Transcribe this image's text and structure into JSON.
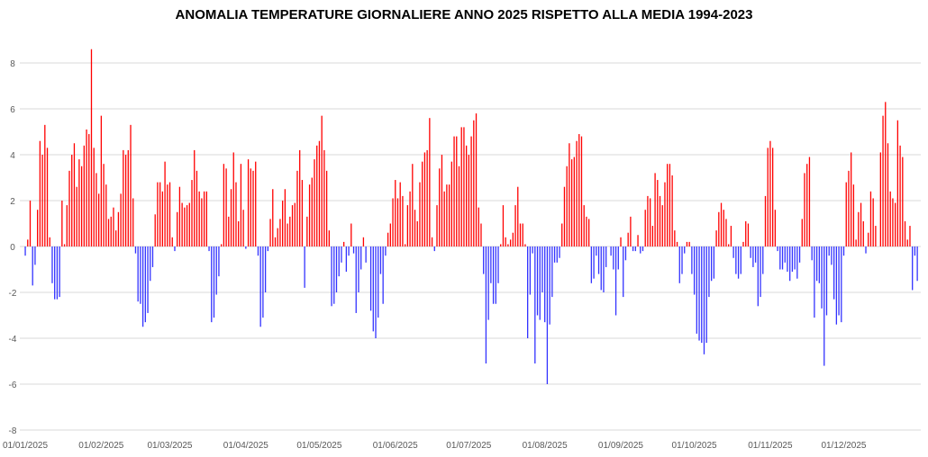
{
  "chart_data": {
    "type": "bar",
    "title": "ANOMALIA TEMPERATURE GIORNALIERE ANNO 2025 RISPETTO ALLA MEDIA 1994-2023",
    "xlabel": "",
    "ylabel": "",
    "ylim": [
      -8,
      8
    ],
    "y_ticks": [
      "-8",
      "-6",
      "-4",
      "-2",
      "0",
      "2",
      "4",
      "6",
      "8"
    ],
    "x_tick_labels": [
      "01/01/2025",
      "01/02/2025",
      "01/03/2025",
      "01/04/2025",
      "01/05/2025",
      "01/06/2025",
      "01/07/2025",
      "01/08/2025",
      "01/09/2025",
      "01/10/2025",
      "01/11/2025",
      "01/12/2025"
    ],
    "grid": true,
    "legend": "none",
    "colors": {
      "positive": "#ff0000",
      "negative": "#3333ff",
      "grid": "#d9d9d9"
    },
    "values": [
      -0.4,
      0.3,
      2.0,
      -1.7,
      -0.8,
      1.6,
      4.6,
      4.0,
      5.3,
      4.3,
      0.4,
      -1.6,
      -2.3,
      -2.3,
      -2.2,
      2.0,
      0.1,
      1.8,
      3.3,
      4.0,
      4.5,
      2.6,
      3.8,
      3.5,
      4.4,
      5.1,
      4.9,
      8.6,
      4.3,
      3.2,
      2.3,
      5.7,
      3.6,
      2.7,
      1.2,
      1.3,
      1.7,
      0.7,
      1.5,
      2.3,
      4.2,
      4.0,
      4.2,
      5.3,
      2.1,
      -0.3,
      -2.4,
      -2.5,
      -3.5,
      -3.3,
      -2.9,
      -1.5,
      -0.9,
      1.4,
      2.8,
      2.8,
      2.4,
      3.7,
      2.7,
      2.8,
      0.4,
      -0.2,
      1.5,
      2.6,
      1.9,
      1.7,
      1.8,
      1.9,
      2.9,
      4.2,
      3.3,
      2.4,
      2.1,
      2.4,
      2.4,
      -0.2,
      -3.3,
      -3.1,
      -2.1,
      -1.3,
      0.1,
      3.6,
      3.4,
      1.3,
      2.5,
      4.1,
      2.8,
      1.1,
      3.6,
      1.6,
      -0.1,
      3.8,
      3.4,
      3.3,
      3.7,
      -0.4,
      -3.5,
      -3.1,
      -2.0,
      -0.2,
      1.2,
      2.5,
      0.4,
      0.8,
      1.2,
      2.0,
      2.5,
      1.0,
      1.3,
      1.8,
      1.9,
      3.3,
      4.2,
      2.9,
      -1.8,
      1.3,
      2.7,
      3.0,
      3.8,
      4.4,
      4.6,
      5.7,
      4.2,
      3.3,
      0.7,
      -2.6,
      -2.5,
      -2.0,
      -1.3,
      -0.7,
      0.2,
      -1.1,
      -0.4,
      1.0,
      -0.3,
      -2.9,
      -2.0,
      -1.0,
      0.4,
      -0.7,
      0,
      -2.8,
      -3.7,
      -4.0,
      -3.1,
      -1.2,
      -2.5,
      -0.4,
      0.6,
      1.0,
      2.1,
      2.9,
      2.1,
      2.8,
      2.2,
      0.1,
      1.8,
      2.4,
      3.6,
      1.6,
      1.1,
      2.8,
      3.7,
      4.1,
      4.2,
      5.6,
      0.4,
      -0.2,
      1.8,
      3.4,
      4.0,
      2.4,
      2.7,
      2.7,
      3.7,
      4.8,
      4.8,
      3.5,
      5.2,
      5.2,
      4.4,
      4.0,
      4.8,
      5.5,
      5.8,
      1.7,
      1.0,
      -1.2,
      -5.1,
      -3.2,
      -1.6,
      -2.5,
      -2.5,
      -1.6,
      0.1,
      1.8,
      0.4,
      0.1,
      0.3,
      0.6,
      1.8,
      2.6,
      1.0,
      1.0,
      0.1,
      -4.0,
      -2.1,
      -0.3,
      -5.1,
      -3.0,
      -3.2,
      -2.0,
      -3.3,
      -6.0,
      -3.4,
      -2.2,
      -0.7,
      -0.7,
      -0.5,
      1.0,
      2.6,
      3.5,
      4.5,
      3.8,
      3.9,
      4.6,
      4.9,
      4.8,
      1.8,
      1.3,
      1.2,
      -1.6,
      -1.4,
      -0.4,
      -1.2,
      -1.9,
      -2.0,
      -0.9,
      0,
      -0.4,
      -1.0,
      -3.0,
      -1.0,
      0.4,
      -2.2,
      -0.6,
      0.6,
      1.3,
      -0.2,
      -0.2,
      0.5,
      -0.3,
      -0.2,
      1.6,
      2.2,
      2.1,
      0.9,
      3.2,
      2.9,
      2.2,
      1.8,
      2.8,
      3.6,
      3.6,
      3.1,
      0.7,
      0.2,
      -1.6,
      -1.2,
      -0.3,
      0.2,
      0.2,
      -1.2,
      -2.1,
      -3.8,
      -4.1,
      -4.2,
      -4.7,
      -4.2,
      -2.2,
      -1.5,
      -1.4,
      0.7,
      1.5,
      1.9,
      1.6,
      1.2,
      0.1,
      0.9,
      -0.5,
      -1.2,
      -1.4,
      -1.2,
      0.2,
      1.1,
      1.0,
      -0.5,
      -0.9,
      -0.7,
      -2.6,
      -2.2,
      -1.2,
      2.2,
      4.3,
      4.6,
      4.3,
      1.6,
      -0.2,
      -1.0,
      -1.0,
      -0.7,
      -1.1,
      -1.5,
      -1.1,
      -1.0,
      -1.4,
      -0.7,
      1.2,
      3.2,
      3.6,
      3.9,
      -0.6,
      -3.1,
      -1.5,
      -1.6,
      -2.7,
      -5.2,
      -3.0,
      -0.4,
      -0.8,
      -2.3,
      -3.4,
      -3.0,
      -3.3,
      -0.4,
      2.8,
      3.3,
      4.1,
      2.7,
      0.3,
      1.5,
      1.9,
      1.1,
      -0.3,
      0.6,
      2.4,
      2.1,
      0.9,
      0,
      4.1,
      5.7,
      6.3,
      4.5,
      2.4,
      2.1,
      1.9,
      5.5,
      4.4,
      3.9,
      1.1,
      0.3,
      0.9,
      -1.9,
      -0.4,
      -1.5
    ]
  }
}
